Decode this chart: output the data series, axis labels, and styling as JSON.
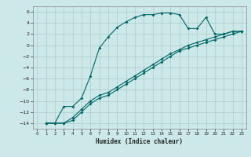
{
  "xlabel": "Humidex (Indice chaleur)",
  "bg_color": "#cce8e8",
  "grid_color": "#aacccc",
  "line_color": "#006666",
  "xlim": [
    -0.5,
    23.5
  ],
  "ylim": [
    -15,
    7
  ],
  "yticks": [
    -14,
    -12,
    -10,
    -8,
    -6,
    -4,
    -2,
    0,
    2,
    4,
    6
  ],
  "xticks": [
    0,
    1,
    2,
    3,
    4,
    5,
    6,
    7,
    8,
    9,
    10,
    11,
    12,
    13,
    14,
    15,
    16,
    17,
    18,
    19,
    20,
    21,
    22,
    23
  ],
  "curve1_x": [
    1,
    2,
    3,
    4,
    5,
    6,
    7,
    8,
    9,
    10,
    11,
    12,
    13,
    14,
    15,
    16,
    17,
    18,
    19,
    20,
    21,
    22,
    23
  ],
  "curve1_y": [
    -14,
    -14,
    -11,
    -11,
    -9.5,
    -5.5,
    -0.5,
    1.5,
    3.2,
    4.2,
    5.0,
    5.5,
    5.5,
    5.8,
    5.8,
    5.5,
    3.0,
    3.0,
    5.0,
    2.0,
    2.0,
    2.5,
    2.5
  ],
  "curve2_x": [
    1,
    2,
    3,
    4,
    5,
    6,
    7,
    8,
    9,
    10,
    11,
    12,
    13,
    14,
    15,
    16,
    17,
    18,
    19,
    20,
    21,
    22,
    23
  ],
  "curve2_y": [
    -14,
    -14,
    -14,
    -13.0,
    -11.5,
    -10.0,
    -9.0,
    -8.5,
    -7.5,
    -6.5,
    -5.5,
    -4.5,
    -3.5,
    -2.5,
    -1.5,
    -0.8,
    0.0,
    0.5,
    1.0,
    1.5,
    2.0,
    2.5,
    2.5
  ],
  "curve3_x": [
    1,
    2,
    3,
    4,
    5,
    6,
    7,
    8,
    9,
    10,
    11,
    12,
    13,
    14,
    15,
    16,
    17,
    18,
    19,
    20,
    21,
    22,
    23
  ],
  "curve3_y": [
    -14,
    -14,
    -14,
    -13.5,
    -12.0,
    -10.5,
    -9.5,
    -9.0,
    -8.0,
    -7.0,
    -6.0,
    -5.0,
    -4.0,
    -3.0,
    -2.0,
    -1.0,
    -0.5,
    0.0,
    0.5,
    1.0,
    1.5,
    2.0,
    2.5
  ]
}
